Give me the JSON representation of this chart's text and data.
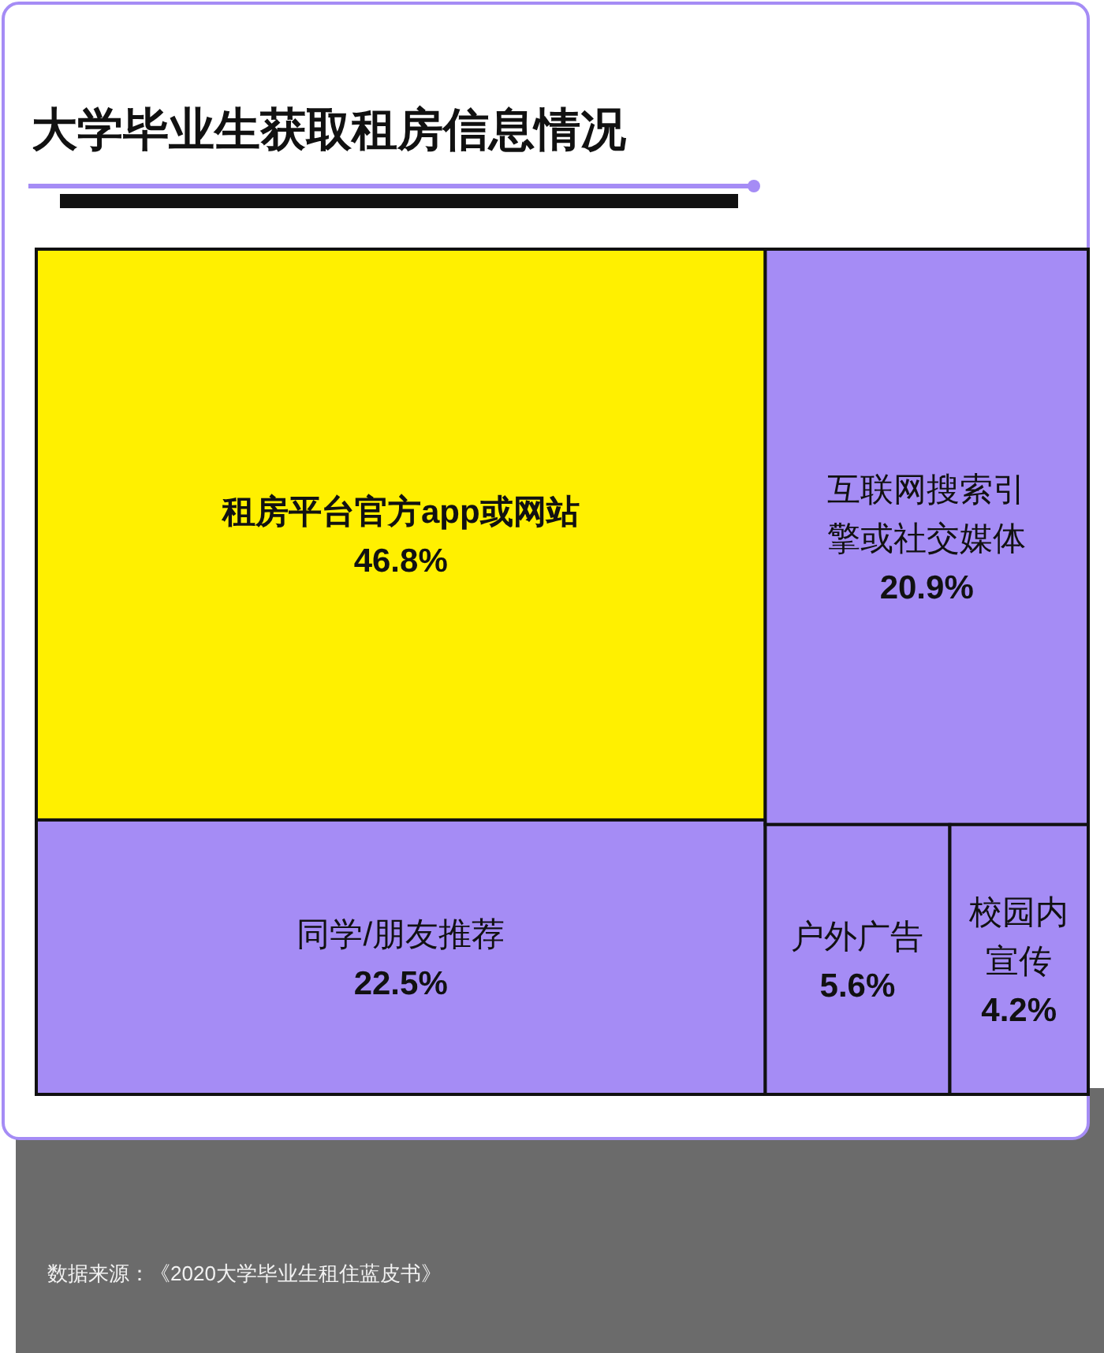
{
  "chart_data": {
    "type": "other",
    "title": "大学毕业生获取租房信息情况",
    "categories": [
      "租房平台官方app或网站",
      "同学/朋友推荐",
      "互联网搜索引擎或社交媒体",
      "户外广告",
      "校园内宣传"
    ],
    "values": [
      46.8,
      22.5,
      20.9,
      5.6,
      4.2
    ],
    "value_labels": [
      "46.8%",
      "22.5%",
      "20.9%",
      "5.6%",
      "4.2%"
    ],
    "colors": [
      "#fff000",
      "#a58cf5",
      "#a58cf5",
      "#a58cf5",
      "#a58cf5"
    ],
    "annotations": [
      "数据来源：《2020大学毕业生租住蓝皮书》"
    ]
  }
}
